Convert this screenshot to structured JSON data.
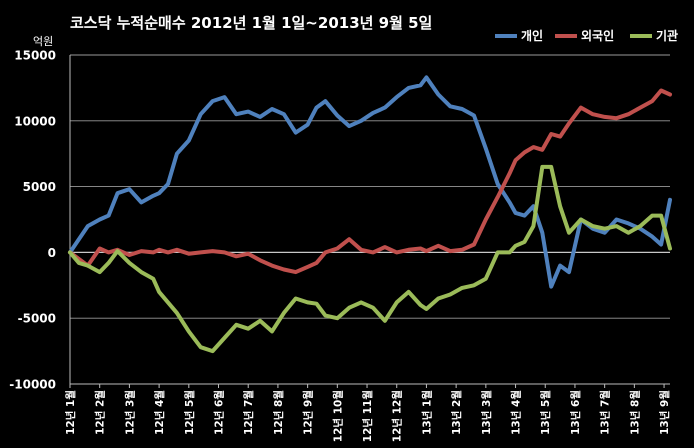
{
  "chart_data": {
    "type": "line",
    "title": "코스닥  누적순매수 2012년 1월 1일~2013년 9월 5일",
    "ylabel": "억원",
    "ylim": [
      -10000,
      15000
    ],
    "yticks": [
      -10000,
      -5000,
      0,
      5000,
      10000,
      15000
    ],
    "ytick_labels": [
      "-10000",
      "-5000",
      "0",
      "5000",
      "10000",
      "15000"
    ],
    "xlim": [
      0,
      20.2
    ],
    "grid": "horizontal",
    "legend_position": "top-right",
    "categories": [
      "12년 1월",
      "12년 2월",
      "12년 3월",
      "12년 4월",
      "12년 5월",
      "12년 6월",
      "12년 7월",
      "12년 8월",
      "12년 9월",
      "12년 10월",
      "12년 11월",
      "12년 12월",
      "13년 1월",
      "13년 2월",
      "13년 3월",
      "13년 4월",
      "13년 5월",
      "13년 6월",
      "13년 7월",
      "13년 8월",
      "13년 9월"
    ],
    "x": [
      0,
      0.3,
      0.6,
      1.0,
      1.3,
      1.6,
      2.0,
      2.4,
      2.8,
      3.0,
      3.3,
      3.6,
      4.0,
      4.4,
      4.8,
      5.2,
      5.6,
      6.0,
      6.4,
      6.8,
      7.2,
      7.6,
      8.0,
      8.3,
      8.6,
      9.0,
      9.4,
      9.8,
      10.2,
      10.6,
      11.0,
      11.4,
      11.8,
      12.0,
      12.4,
      12.8,
      13.2,
      13.6,
      14.0,
      14.4,
      14.8,
      15.0,
      15.3,
      15.6,
      15.9,
      16.2,
      16.5,
      16.8,
      17.2,
      17.6,
      18.0,
      18.4,
      18.8,
      19.2,
      19.6,
      19.9,
      20.2
    ],
    "series": [
      {
        "name": "개인",
        "color": "#4F81BD",
        "values": [
          0,
          1000,
          2000,
          2500,
          2800,
          4500,
          4800,
          3800,
          4300,
          4500,
          5200,
          7500,
          8500,
          10500,
          11500,
          11800,
          10500,
          10700,
          10300,
          10900,
          10500,
          9100,
          9700,
          11000,
          11500,
          10400,
          9600,
          10000,
          10600,
          11000,
          11800,
          12500,
          12700,
          13300,
          12000,
          11100,
          10900,
          10400,
          7900,
          5200,
          3800,
          3000,
          2800,
          3500,
          1500,
          -2600,
          -1000,
          -1500,
          2500,
          1800,
          1500,
          2500,
          2200,
          1800,
          1200,
          600,
          4000
        ]
      },
      {
        "name": "외국인",
        "color": "#C0504D",
        "values": [
          0,
          -500,
          -1000,
          300,
          0,
          200,
          -200,
          100,
          0,
          200,
          0,
          200,
          -100,
          0,
          100,
          0,
          -300,
          -100,
          -600,
          -1000,
          -1300,
          -1500,
          -1100,
          -800,
          0,
          300,
          1000,
          200,
          0,
          400,
          0,
          200,
          300,
          100,
          500,
          100,
          200,
          600,
          2500,
          4200,
          6000,
          7000,
          7600,
          8000,
          7800,
          9000,
          8800,
          9800,
          11000,
          10500,
          10300,
          10200,
          10500,
          11000,
          11500,
          12300,
          12000
        ]
      },
      {
        "name": "기관",
        "color": "#9BBB59",
        "values": [
          0,
          -800,
          -1000,
          -1500,
          -800,
          100,
          -800,
          -1500,
          -2000,
          -3000,
          -3800,
          -4600,
          -6000,
          -7200,
          -7500,
          -6500,
          -5500,
          -5800,
          -5200,
          -6000,
          -4600,
          -3500,
          -3800,
          -3900,
          -4800,
          -5000,
          -4200,
          -3800,
          -4200,
          -5200,
          -3800,
          -3000,
          -4000,
          -4300,
          -3500,
          -3200,
          -2700,
          -2500,
          -2000,
          0,
          0,
          500,
          800,
          2000,
          6500,
          6500,
          3500,
          1500,
          2500,
          2000,
          1800,
          2000,
          1500,
          2000,
          2800,
          2800,
          300
        ]
      }
    ]
  }
}
